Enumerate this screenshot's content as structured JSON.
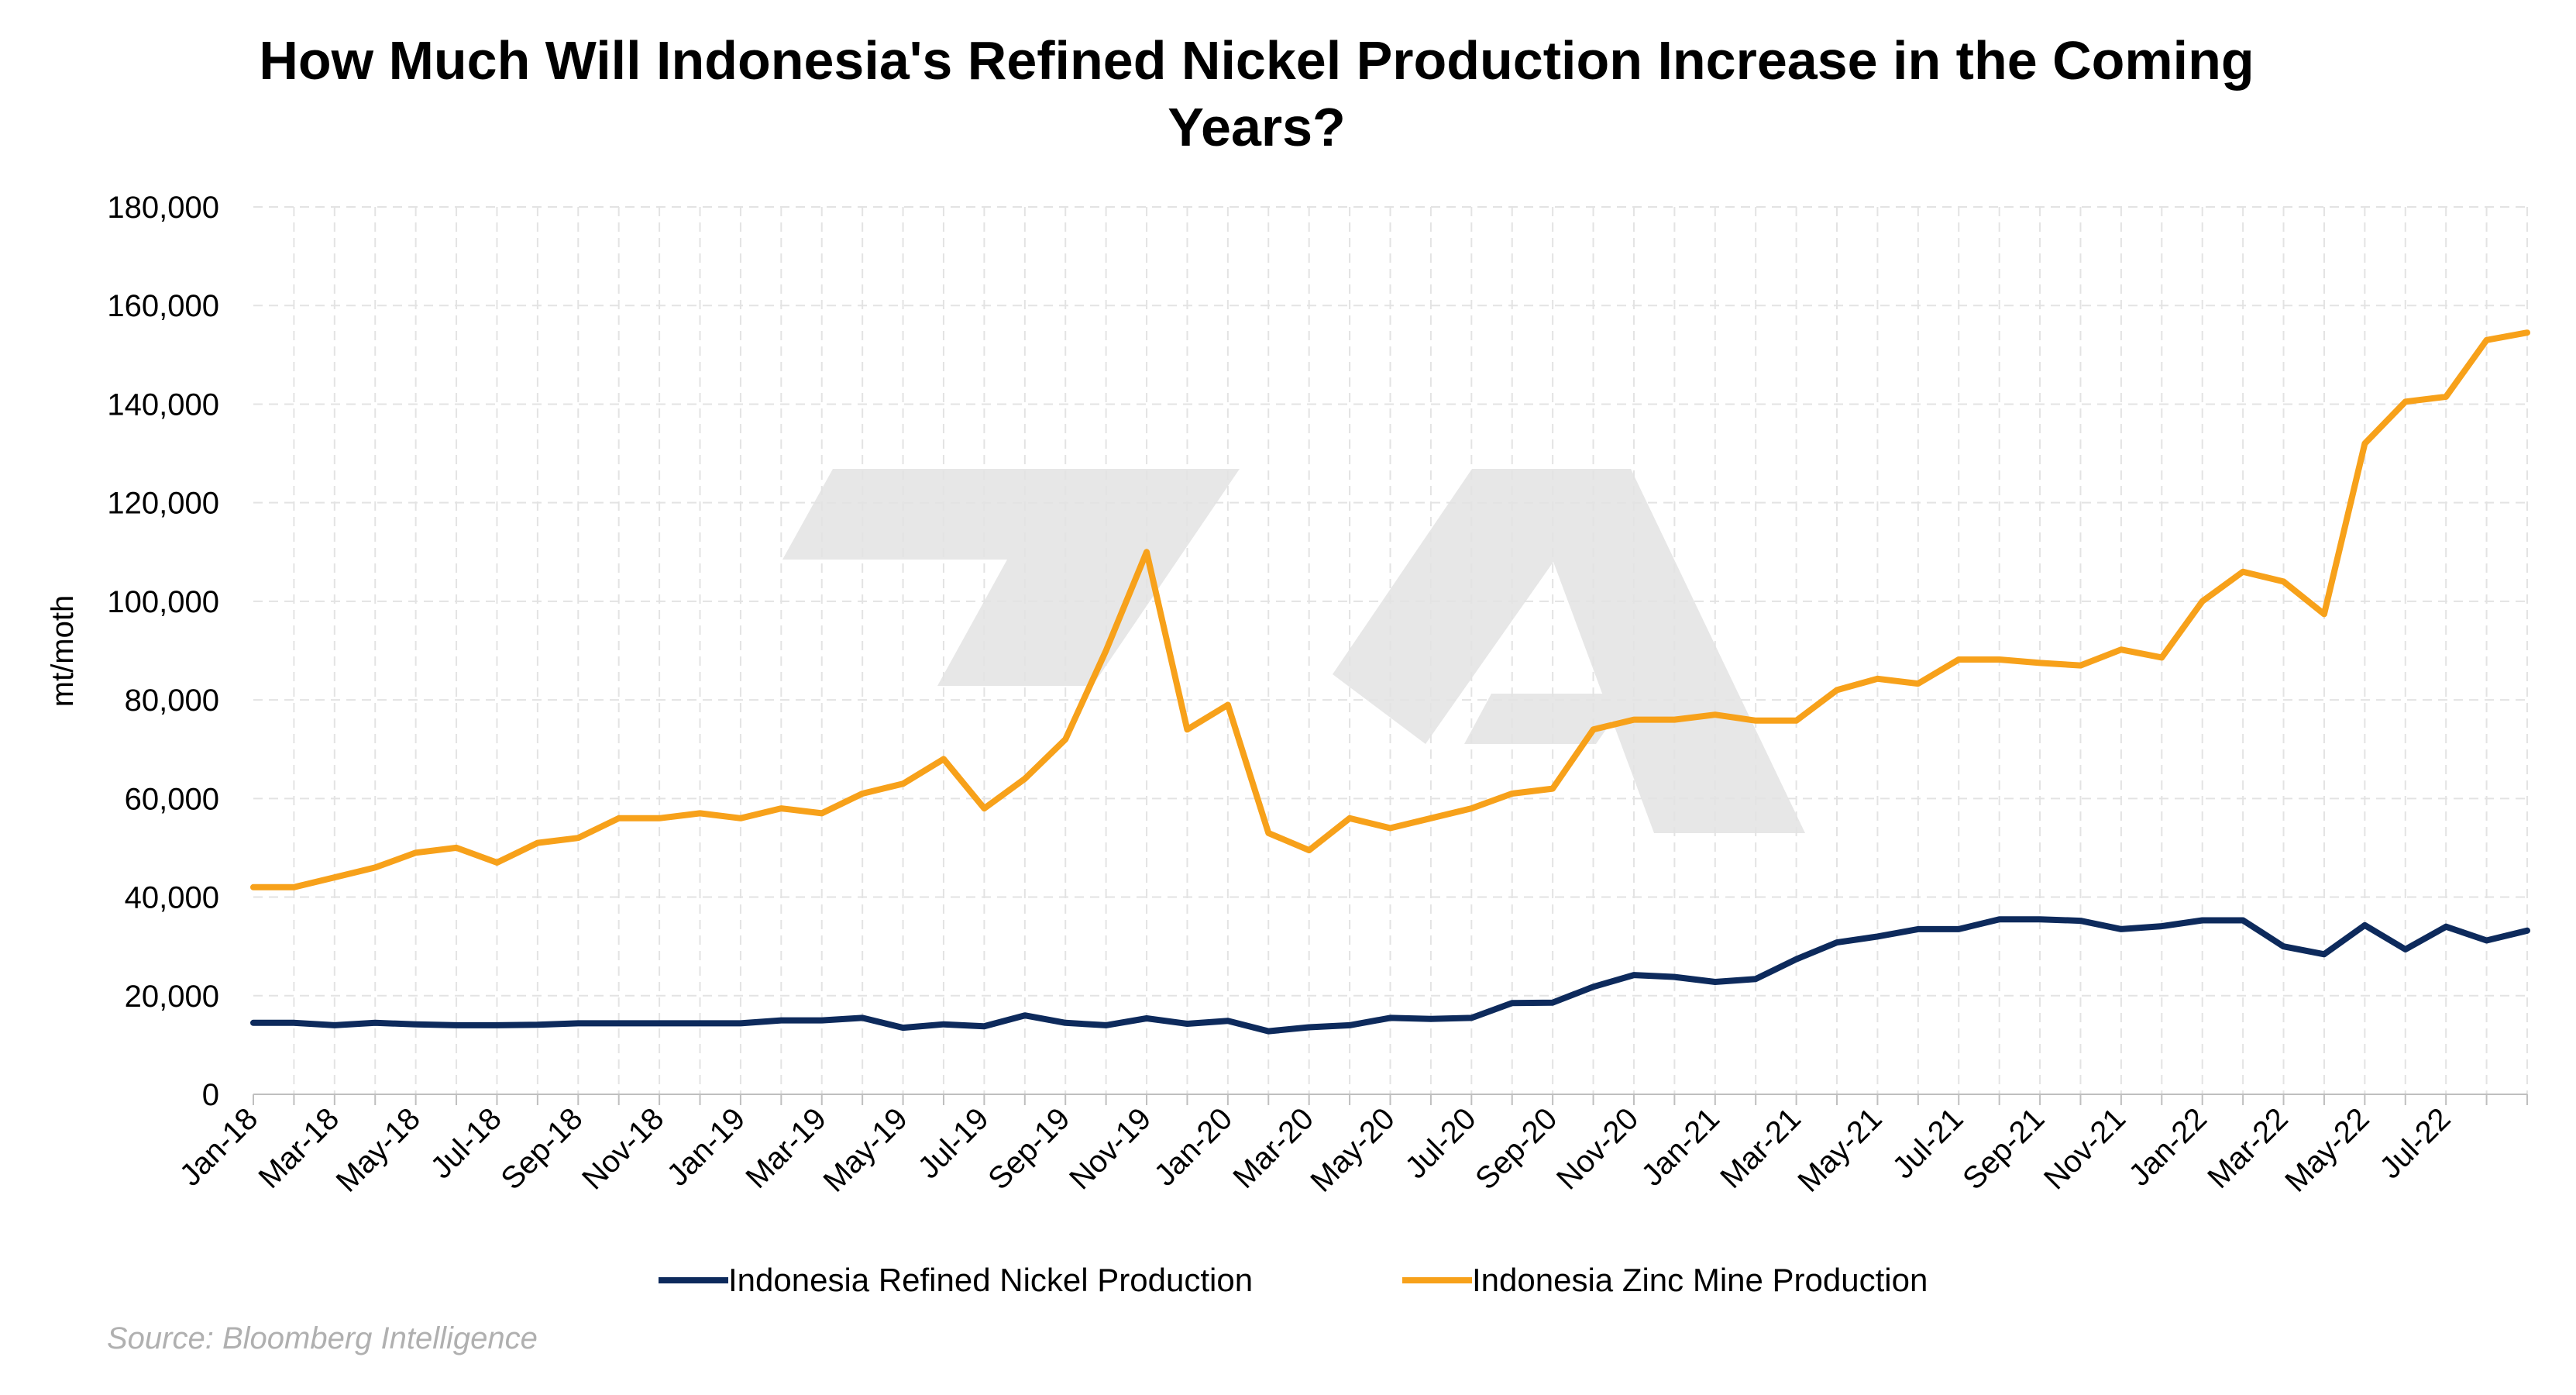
{
  "chart_data": {
    "type": "line",
    "title_line1": "How Much Will Indonesia's Refined Nickel Production Increase in the Coming",
    "title_line2": "Years?",
    "ylabel": "mt/moth",
    "xlabel": "",
    "ylim": [
      0,
      180000
    ],
    "yticks": [
      "0",
      "20,000",
      "40,000",
      "60,000",
      "80,000",
      "100,000",
      "120,000",
      "140,000",
      "160,000",
      "180,000"
    ],
    "x": [
      "Jan-18",
      "Feb-18",
      "Mar-18",
      "Apr-18",
      "May-18",
      "Jun-18",
      "Jul-18",
      "Aug-18",
      "Sep-18",
      "Oct-18",
      "Nov-18",
      "Dec-18",
      "Jan-19",
      "Feb-19",
      "Mar-19",
      "Apr-19",
      "May-19",
      "Jun-19",
      "Jul-19",
      "Aug-19",
      "Sep-19",
      "Oct-19",
      "Nov-19",
      "Dec-19",
      "Jan-20",
      "Feb-20",
      "Mar-20",
      "Apr-20",
      "May-20",
      "Jun-20",
      "Jul-20",
      "Aug-20",
      "Sep-20",
      "Oct-20",
      "Nov-20",
      "Dec-20",
      "Jan-21",
      "Feb-21",
      "Mar-21",
      "Apr-21",
      "May-21",
      "Jun-21",
      "Jul-21",
      "Aug-21",
      "Sep-21",
      "Oct-21",
      "Nov-21",
      "Dec-21",
      "Jan-22",
      "Feb-22",
      "Mar-22",
      "Apr-22",
      "May-22",
      "Jun-22",
      "Jul-22",
      "Aug-22",
      "Sep-22"
    ],
    "xtick_labels": [
      "Jan-18",
      "Mar-18",
      "May-18",
      "Jul-18",
      "Sep-18",
      "Nov-18",
      "Jan-19",
      "Mar-19",
      "May-19",
      "Jul-19",
      "Sep-19",
      "Nov-19",
      "Jan-20",
      "Mar-20",
      "May-20",
      "Jul-20",
      "Sep-20",
      "Nov-20",
      "Jan-21",
      "Mar-21",
      "May-21",
      "Jul-21",
      "Sep-21",
      "Nov-21",
      "Jan-22",
      "Mar-22",
      "May-22",
      "Jul-22"
    ],
    "series": [
      {
        "name": "Indonesia Refined Nickel Production",
        "color": "#0d2a5c",
        "values": [
          14500,
          14500,
          14000,
          14500,
          14200,
          14000,
          14000,
          14100,
          14400,
          14400,
          14400,
          14400,
          14400,
          15000,
          15000,
          15500,
          13500,
          14200,
          13800,
          16000,
          14500,
          14000,
          15400,
          14300,
          14900,
          12800,
          13600,
          14000,
          15500,
          15300,
          15500,
          18500,
          18600,
          21800,
          24200,
          23800,
          22800,
          23400,
          27400,
          30800,
          32000,
          33500,
          33500,
          35500,
          35500,
          35200,
          33500,
          34100,
          35300,
          35300,
          30000,
          28400,
          34300,
          29400,
          34000,
          31200,
          33200
        ]
      },
      {
        "name": "Indonesia Zinc Mine Production",
        "color": "#f7a11a",
        "values": [
          42000,
          42000,
          44000,
          46000,
          49000,
          50000,
          47000,
          51000,
          52000,
          56000,
          56000,
          57000,
          56000,
          58000,
          57000,
          61000,
          63000,
          68000,
          58000,
          64000,
          72000,
          90000,
          110000,
          74000,
          79000,
          53000,
          49500,
          56000,
          54000,
          56000,
          58000,
          61000,
          62000,
          74000,
          76000,
          76000,
          77000,
          75800,
          75800,
          82000,
          84300,
          83300,
          88200,
          88200,
          87500,
          87000,
          90200,
          88600,
          100000,
          106000,
          104000,
          97400,
          132000,
          140500,
          141500,
          153000,
          154500
        ]
      }
    ],
    "legend_placement": "bottom",
    "grid": true,
    "source": "Source: Bloomberg Intelligence"
  }
}
